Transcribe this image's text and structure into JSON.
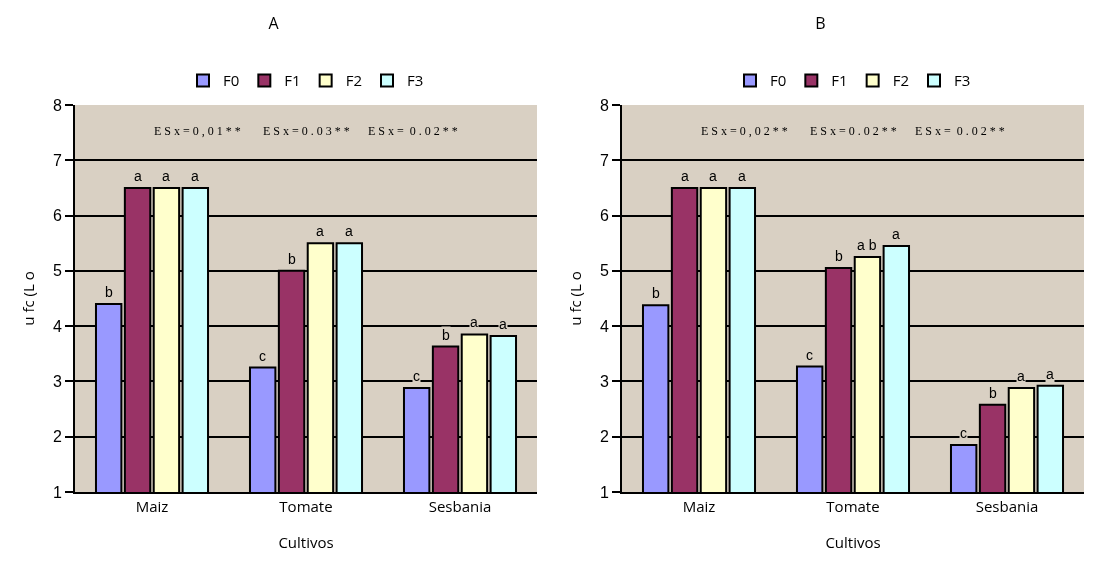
{
  "chart_data": [
    {
      "type": "bar",
      "title": "A",
      "xlabel": "Cultivos",
      "ylabel": "u fc (L o",
      "categories": [
        "Maiz",
        "Tomate",
        "Sesbania"
      ],
      "series": [
        {
          "name": "F0",
          "color": "#9999ff",
          "values": [
            4.4,
            3.25,
            2.88
          ],
          "value_labels": [
            "b",
            "c",
            "c"
          ]
        },
        {
          "name": "F1",
          "color": "#993366",
          "values": [
            6.5,
            5.0,
            3.63
          ],
          "value_labels": [
            "a",
            "b",
            "b"
          ]
        },
        {
          "name": "F2",
          "color": "#ffffcc",
          "values": [
            6.5,
            5.5,
            3.85
          ],
          "value_labels": [
            "a",
            "a",
            "a"
          ]
        },
        {
          "name": "F3",
          "color": "#ccffff",
          "values": [
            6.5,
            5.5,
            3.82
          ],
          "value_labels": [
            "a",
            "a",
            "a"
          ]
        }
      ],
      "ylim": [
        1,
        8
      ],
      "yticks": [
        1,
        2,
        3,
        4,
        5,
        6,
        7,
        8
      ],
      "grid": "y",
      "legend": "top",
      "annotations": [
        "E S x = 0 , 0 1 * *",
        "E S x = 0 . 0 3 * *",
        "E S x =  0 . 0 2 * *"
      ]
    },
    {
      "type": "bar",
      "title": "B",
      "xlabel": "Cultivos",
      "ylabel": "u fc (L o",
      "categories": [
        "Maiz",
        "Tomate",
        "Sesbania"
      ],
      "series": [
        {
          "name": "F0",
          "color": "#9999ff",
          "values": [
            4.38,
            3.27,
            1.85
          ],
          "value_labels": [
            "b",
            "c",
            "c"
          ]
        },
        {
          "name": "F1",
          "color": "#993366",
          "values": [
            6.5,
            5.05,
            2.58
          ],
          "value_labels": [
            "a",
            "b",
            "b"
          ]
        },
        {
          "name": "F2",
          "color": "#ffffcc",
          "values": [
            6.5,
            5.25,
            2.88
          ],
          "value_labels": [
            "a",
            "a b",
            "a"
          ]
        },
        {
          "name": "F3",
          "color": "#ccffff",
          "values": [
            6.5,
            5.45,
            2.92
          ],
          "value_labels": [
            "a",
            "a",
            "a"
          ]
        }
      ],
      "ylim": [
        1,
        8
      ],
      "yticks": [
        1,
        2,
        3,
        4,
        5,
        6,
        7,
        8
      ],
      "grid": "y",
      "legend": "top",
      "annotations": [
        "E S x = 0 , 0 2 * *",
        "E S x = 0 . 0 2 * *",
        "E S x =  0 . 0 2 * *"
      ]
    }
  ]
}
